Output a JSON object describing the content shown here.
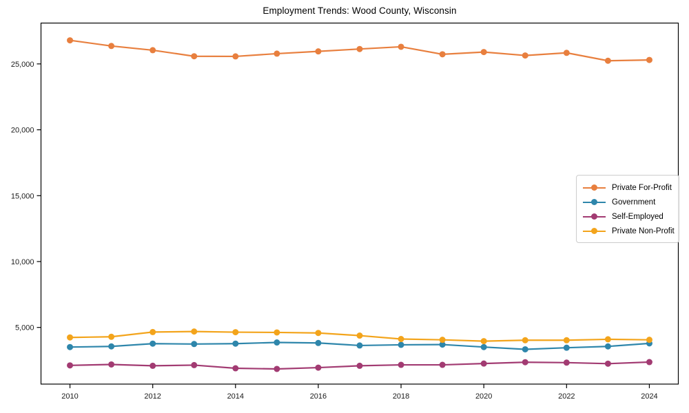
{
  "figure": {
    "background": "#ffffff"
  },
  "chart_data": {
    "type": "line",
    "title": "Employment Trends: Wood County, Wisconsin",
    "x": [
      2010,
      2011,
      2012,
      2013,
      2014,
      2015,
      2016,
      2017,
      2018,
      2019,
      2020,
      2021,
      2022,
      2023,
      2024
    ],
    "series": [
      {
        "name": "Private For-Profit",
        "color": "#e87f3e",
        "values": [
          26790,
          26360,
          26040,
          25580,
          25570,
          25780,
          25950,
          26130,
          26300,
          25730,
          25900,
          25640,
          25840,
          25240,
          25300
        ]
      },
      {
        "name": "Government",
        "color": "#2e86ab",
        "values": [
          3510,
          3560,
          3770,
          3740,
          3770,
          3860,
          3820,
          3630,
          3680,
          3700,
          3510,
          3340,
          3460,
          3560,
          3790
        ]
      },
      {
        "name": "Self-Employed",
        "color": "#a23b72",
        "values": [
          2120,
          2190,
          2090,
          2140,
          1900,
          1850,
          1950,
          2090,
          2160,
          2160,
          2260,
          2360,
          2330,
          2250,
          2370
        ]
      },
      {
        "name": "Private Non-Profit",
        "color": "#f3a41b",
        "values": [
          4240,
          4290,
          4650,
          4690,
          4640,
          4620,
          4580,
          4380,
          4120,
          4060,
          3960,
          4030,
          4030,
          4100,
          4060
        ]
      }
    ],
    "xlabel": "",
    "ylabel": "",
    "xlim": [
      2009.3,
      2024.7
    ],
    "ylim": [
      700,
      28100
    ],
    "x_ticks": [
      2010,
      2012,
      2014,
      2016,
      2018,
      2020,
      2022,
      2024
    ],
    "x_tick_labels": [
      "2010",
      "2012",
      "2014",
      "2016",
      "2018",
      "2020",
      "2022",
      "2024"
    ],
    "y_ticks": [
      5000,
      10000,
      15000,
      20000,
      25000
    ],
    "y_tick_labels": [
      "5,000",
      "10,000",
      "15,000",
      "20,000",
      "25,000"
    ],
    "grid": false,
    "legend_position": "center-right",
    "axis_color": "#000000",
    "tick_label_color": "#1a1a1a",
    "line_width": 2.2,
    "marker": "circle",
    "marker_radius": 4.5
  }
}
